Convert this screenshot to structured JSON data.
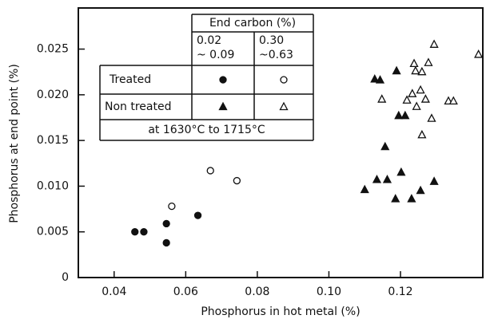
{
  "chart_data": {
    "type": "scatter",
    "xlabel": "Phosphorus in hot metal (%)",
    "ylabel": "Phosphorus at end point (%)",
    "xlim": [
      0.03,
      0.143
    ],
    "ylim": [
      0,
      0.0295
    ],
    "xticks": [
      0.04,
      0.06,
      0.08,
      {
        "value": 0.1,
        "label": "0.10"
      },
      0.12
    ],
    "yticks": [
      0,
      0.005,
      {
        "value": 0.01,
        "label": "0.010"
      },
      0.015,
      {
        "value": 0.02,
        "label": "0.020"
      },
      0.025
    ],
    "legend_table": {
      "header": "End carbon (%)",
      "columns": [
        "0.02\n~ 0.09",
        "0.30\n~0.63"
      ],
      "rows": [
        "Treated",
        "Non treated"
      ],
      "footer": "at 1630°C to 1715°C"
    },
    "series": [
      {
        "marker": "circle",
        "filled": true,
        "color": "#111",
        "x": [
          0.0458,
          0.0483,
          0.0546,
          0.0546,
          0.0634
        ],
        "values": [
          0.005,
          0.005,
          0.0059,
          0.0038,
          0.0068
        ]
      },
      {
        "marker": "circle",
        "filled": false,
        "color": "#111",
        "x": [
          0.0561,
          0.0669,
          0.0743
        ],
        "values": [
          0.0078,
          0.0117,
          0.0106
        ]
      },
      {
        "marker": "triangle",
        "filled": true,
        "color": "#111",
        "x": [
          0.11,
          0.1134,
          0.1163,
          0.1157,
          0.1128,
          0.1143,
          0.1189,
          0.1195,
          0.1213,
          0.1186,
          0.1202,
          0.1231,
          0.1256,
          0.1294
        ],
        "values": [
          0.0096,
          0.0107,
          0.0107,
          0.0143,
          0.0217,
          0.0216,
          0.0226,
          0.0177,
          0.0177,
          0.0086,
          0.0115,
          0.0086,
          0.0095,
          0.0105
        ]
      },
      {
        "marker": "triangle",
        "filled": false,
        "color": "#111",
        "x": [
          0.1218,
          0.1233,
          0.1242,
          0.1238,
          0.126,
          0.1256,
          0.1245,
          0.127,
          0.126,
          0.1278,
          0.1294,
          0.1287,
          0.1148,
          0.1334,
          0.1348,
          0.1418
        ],
        "values": [
          0.0194,
          0.0201,
          0.0226,
          0.0234,
          0.0225,
          0.0205,
          0.0187,
          0.0195,
          0.0156,
          0.0235,
          0.0255,
          0.0174,
          0.0195,
          0.0193,
          0.0193,
          0.0244
        ]
      }
    ]
  }
}
